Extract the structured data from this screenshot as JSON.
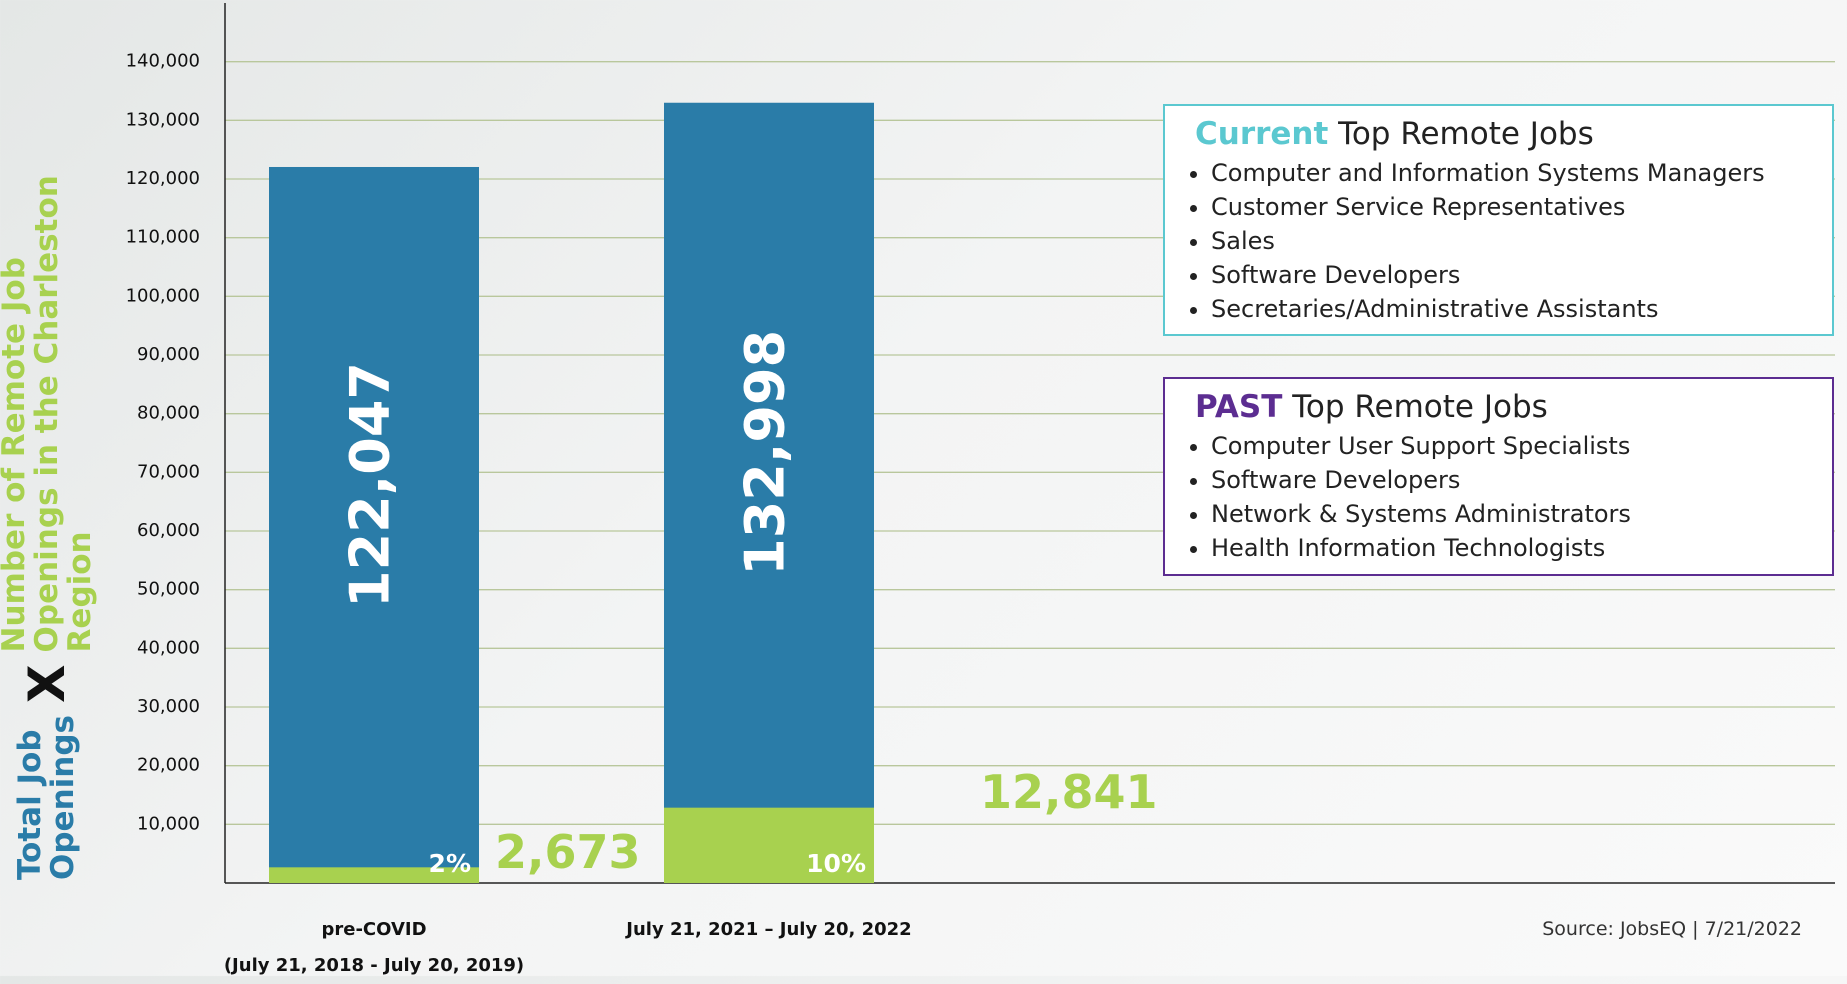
{
  "chart_data": {
    "type": "bar",
    "categories": [
      "pre-COVID\n(July 21, 2018 - July 20, 2019)",
      "July 21, 2021 – July 20, 2022"
    ],
    "series": [
      {
        "name": "Total Job\nOpenings",
        "color": "#2a7ca8",
        "values": [
          122047,
          132998
        ],
        "value_labels": [
          "122,047",
          "132,998"
        ]
      },
      {
        "name": "Number of Remote Job Openings in the Charleston Region",
        "color": "#a8d14f",
        "values": [
          2673,
          12841
        ],
        "value_labels": [
          "2,673",
          "12,841"
        ],
        "share_labels": [
          "2%",
          "10%"
        ]
      }
    ],
    "ylabel_joiner": "X",
    "ylim": [
      0,
      150000
    ],
    "yticks": [
      {
        "value": 10000,
        "label": "10,000"
      },
      {
        "value": 20000,
        "label": "20,000"
      },
      {
        "value": 30000,
        "label": "30,000"
      },
      {
        "value": 40000,
        "label": "40,000"
      },
      {
        "value": 50000,
        "label": "50,000"
      },
      {
        "value": 60000,
        "label": "60,000"
      },
      {
        "value": 70000,
        "label": "70,000"
      },
      {
        "value": 80000,
        "label": "80,000"
      },
      {
        "value": 90000,
        "label": "90,000"
      },
      {
        "value": 100000,
        "label": "100,000"
      },
      {
        "value": 110000,
        "label": "110,000"
      },
      {
        "value": 120000,
        "label": "120,000"
      },
      {
        "value": 130000,
        "label": "130,000"
      },
      {
        "value": 140000,
        "label": "140,000"
      }
    ],
    "grid": true,
    "panels": [
      {
        "highlight": "Current",
        "title": "Top Remote Jobs",
        "color": "#5bc8d0",
        "items": [
          "Computer and Information Systems Managers",
          "Customer Service Representatives",
          "Sales",
          "Software Developers",
          "Secretaries/Administrative Assistants"
        ]
      },
      {
        "highlight": "PAST",
        "title": "Top Remote Jobs",
        "color": "#5c2d91",
        "items": [
          "Computer User Support Specialists",
          "Software Developers",
          "Network & Systems Administrators",
          "Health Information Technologists"
        ]
      }
    ],
    "source": "Source: JobsEQ | 7/21/2022"
  }
}
